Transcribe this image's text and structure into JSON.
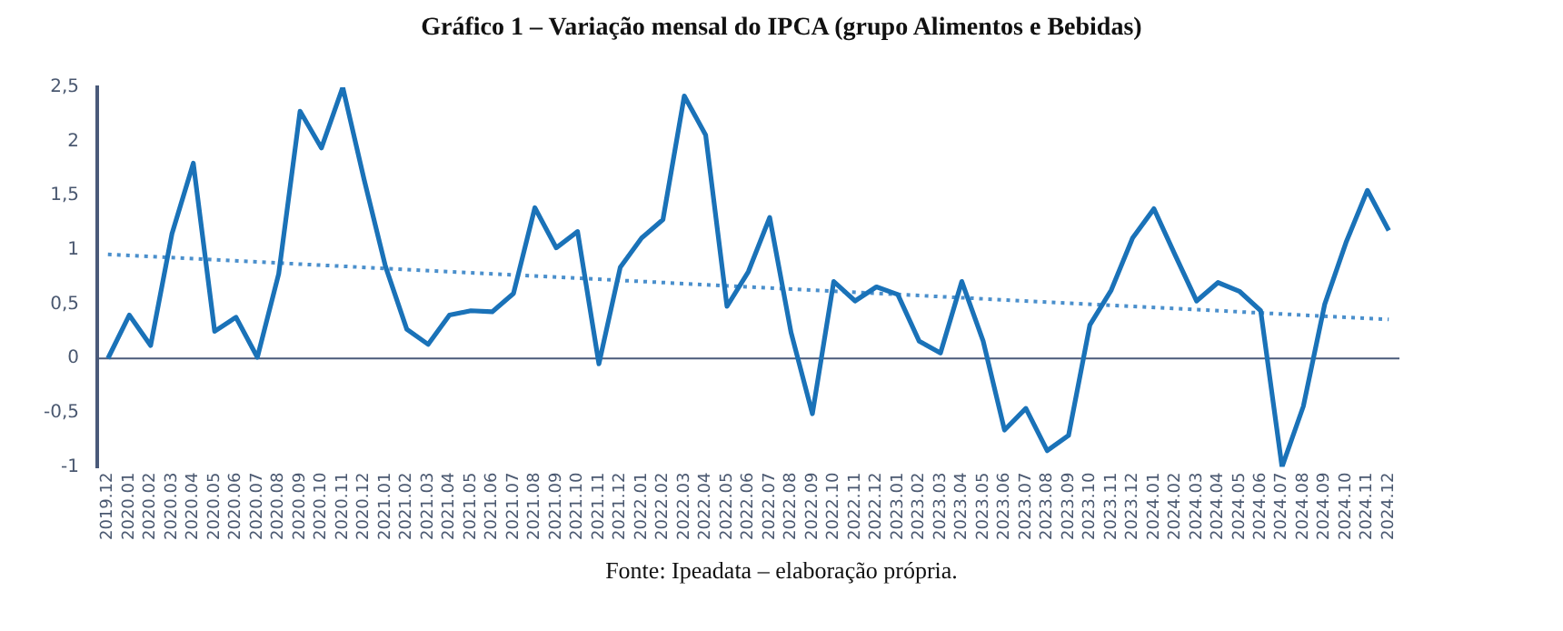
{
  "chart_data": {
    "type": "line",
    "title": "Gráfico 1 – Variação mensal do IPCA (grupo Alimentos e Bebidas)",
    "categories": [
      "2019.12",
      "2020.01",
      "2020.02",
      "2020.03",
      "2020.04",
      "2020.05",
      "2020.06",
      "2020.07",
      "2020.08",
      "2020.09",
      "2020.10",
      "2020.11",
      "2020.12",
      "2021.01",
      "2021.02",
      "2021.03",
      "2021.04",
      "2021.05",
      "2021.06",
      "2021.07",
      "2021.08",
      "2021.09",
      "2021.10",
      "2021.11",
      "2021.12",
      "2022.01",
      "2022.02",
      "2022.03",
      "2022.04",
      "2022.05",
      "2022.06",
      "2022.07",
      "2022.08",
      "2022.09",
      "2022.10",
      "2022.11",
      "2022.12",
      "2023.01",
      "2023.02",
      "2023.03",
      "2023.04",
      "2023.05",
      "2023.06",
      "2023.07",
      "2023.08",
      "2023.09",
      "2023.10",
      "2023.11",
      "2023.12",
      "2024.01",
      "2024.02",
      "2024.03",
      "2024.04",
      "2024.05",
      "2024.06",
      "2024.07",
      "2024.08",
      "2024.09",
      "2024.10",
      "2024.11",
      "2024.12"
    ],
    "series": [
      {
        "color": "#1a72b8",
        "values": [
          0,
          0.4,
          0.12,
          1.15,
          1.8,
          0.25,
          0.38,
          0.01,
          0.78,
          2.28,
          1.94,
          2.5,
          1.65,
          0.85,
          0.27,
          0.13,
          0.4,
          0.44,
          0.43,
          0.6,
          1.39,
          1.02,
          1.17,
          -0.05,
          0.84,
          1.11,
          1.28,
          2.42,
          2.06,
          0.48,
          0.8,
          1.3,
          0.24,
          -0.51,
          0.71,
          0.53,
          0.66,
          0.59,
          0.16,
          0.05,
          0.71,
          0.16,
          -0.66,
          -0.46,
          -0.85,
          -0.71,
          0.31,
          0.63,
          1.11,
          1.38,
          0.95,
          0.53,
          0.7,
          0.62,
          0.44,
          -1.0,
          -0.44,
          0.5,
          1.07,
          1.55,
          1.18
        ]
      },
      {
        "type": "line",
        "color": "#4a8fcc",
        "line_style": "dotted",
        "x": [
          "2019.12",
          "2024.12"
        ],
        "values": [
          0.96,
          0.36
        ]
      }
    ],
    "ylim": [
      -1,
      2.5
    ],
    "yticks": [
      {
        "value": -1,
        "label": "-1"
      },
      {
        "value": -0.5,
        "label": "-0,5"
      },
      {
        "value": 0,
        "label": "0"
      },
      {
        "value": 0.5,
        "label": "0,5"
      },
      {
        "value": 1,
        "label": "1"
      },
      {
        "value": 1.5,
        "label": "1,5"
      },
      {
        "value": 2,
        "label": "2"
      },
      {
        "value": 2.5,
        "label": "2,5"
      }
    ],
    "ref_lines": [
      {
        "axis": "y",
        "value": 0,
        "color": "#4a5a7a"
      }
    ],
    "grid": false,
    "legend": false,
    "marker": "none",
    "line_style": "solid",
    "annotations": [
      "Fonte: Ipeadata – elaboração própria."
    ]
  }
}
